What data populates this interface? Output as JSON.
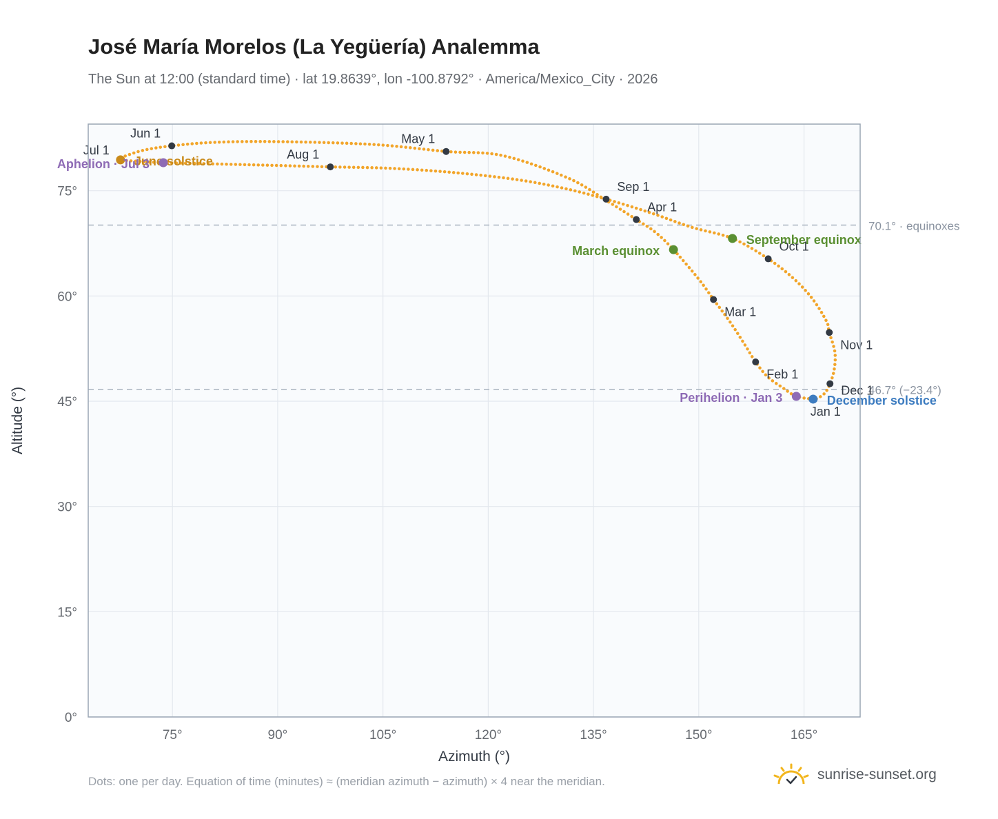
{
  "title": "José María Morelos (La Yegüería) Analemma",
  "subtitle": "The Sun at 12:00 (standard time) · lat 19.8639°, lon -100.8792° · America/Mexico_City · 2026",
  "footnote": "Dots: one per day. Equation of time (minutes) ≈ (meridian azimuth − azimuth) × 4 near the meridian.",
  "brand": {
    "text": "sunrise-sunset.org",
    "icon": "sun-logo-icon"
  },
  "chart_data": {
    "type": "scatter",
    "xlabel": "Azimuth (°)",
    "ylabel": "Altitude (°)",
    "xlim": [
      63,
      173
    ],
    "ylim": [
      0,
      84.5
    ],
    "xticks": [
      75,
      90,
      105,
      120,
      135,
      150,
      165
    ],
    "yticks": [
      0,
      15,
      30,
      45,
      60,
      75
    ],
    "tick_suffix": "°",
    "grid": true,
    "colors": {
      "path": "#f2a52a",
      "month": "#333a44",
      "equinox": "#5a8f32",
      "solstice_june": "#c98a1a",
      "solstice_dec": "#3d7cc0",
      "apsis": "#8e6bb5",
      "refline": "#aab4c0"
    },
    "path": [
      {
        "x": 166.3,
        "y": 45.3,
        "d": "Jan 1"
      },
      {
        "x": 163.9,
        "y": 45.7
      },
      {
        "x": 162.0,
        "y": 46.9
      },
      {
        "x": 159.8,
        "y": 48.5
      },
      {
        "x": 158.1,
        "y": 50.6,
        "d": "Feb 1"
      },
      {
        "x": 156.6,
        "y": 53.0
      },
      {
        "x": 154.8,
        "y": 55.8
      },
      {
        "x": 153.3,
        "y": 57.9
      },
      {
        "x": 152.1,
        "y": 59.5,
        "d": "Mar 1"
      },
      {
        "x": 150.0,
        "y": 62.4
      },
      {
        "x": 146.4,
        "y": 66.6
      },
      {
        "x": 143.8,
        "y": 69.1
      },
      {
        "x": 141.1,
        "y": 70.9,
        "d": "Apr 1"
      },
      {
        "x": 137.0,
        "y": 73.5
      },
      {
        "x": 131.4,
        "y": 76.8
      },
      {
        "x": 122.1,
        "y": 80.0
      },
      {
        "x": 114.0,
        "y": 80.6,
        "d": "May 1"
      },
      {
        "x": 103.5,
        "y": 81.6
      },
      {
        "x": 90.0,
        "y": 82.0
      },
      {
        "x": 81.0,
        "y": 81.9
      },
      {
        "x": 74.9,
        "y": 81.4,
        "d": "Jun 1"
      },
      {
        "x": 71.0,
        "y": 80.8
      },
      {
        "x": 68.4,
        "y": 80.0
      },
      {
        "x": 67.9,
        "y": 79.7
      },
      {
        "x": 67.6,
        "y": 79.4,
        "d": "Jul 1"
      },
      {
        "x": 70.0,
        "y": 79.2
      },
      {
        "x": 73.7,
        "y": 79.0
      },
      {
        "x": 82.0,
        "y": 78.8
      },
      {
        "x": 90.0,
        "y": 78.6
      },
      {
        "x": 97.5,
        "y": 78.4,
        "d": "Aug 1"
      },
      {
        "x": 106.0,
        "y": 78.2
      },
      {
        "x": 115.0,
        "y": 77.6
      },
      {
        "x": 124.0,
        "y": 76.6
      },
      {
        "x": 131.0,
        "y": 75.3
      },
      {
        "x": 136.8,
        "y": 73.8,
        "d": "Sep 1"
      },
      {
        "x": 143.0,
        "y": 71.9
      },
      {
        "x": 149.0,
        "y": 69.8
      },
      {
        "x": 154.8,
        "y": 68.2
      },
      {
        "x": 159.9,
        "y": 65.3,
        "d": "Oct 1"
      },
      {
        "x": 163.5,
        "y": 62.5
      },
      {
        "x": 166.2,
        "y": 59.6
      },
      {
        "x": 168.2,
        "y": 56.4
      },
      {
        "x": 168.6,
        "y": 54.8,
        "d": "Nov 1"
      },
      {
        "x": 169.4,
        "y": 52.0
      },
      {
        "x": 169.3,
        "y": 49.5
      },
      {
        "x": 168.7,
        "y": 47.5,
        "d": "Dec 1"
      },
      {
        "x": 168.0,
        "y": 46.2
      },
      {
        "x": 166.9,
        "y": 45.4
      },
      {
        "x": 166.3,
        "y": 45.3
      }
    ],
    "month_labels": [
      {
        "label": "Jan 1",
        "x": 166.3,
        "y": 45.3,
        "anchor": "start",
        "dx": -4,
        "dy": 24
      },
      {
        "label": "Feb 1",
        "x": 158.1,
        "y": 50.6,
        "anchor": "start",
        "dx": 16,
        "dy": 24
      },
      {
        "label": "Mar 1",
        "x": 152.1,
        "y": 59.5,
        "anchor": "start",
        "dx": 16,
        "dy": 24
      },
      {
        "label": "Apr 1",
        "x": 141.1,
        "y": 70.9,
        "anchor": "start",
        "dx": 16,
        "dy": -12
      },
      {
        "label": "May 1",
        "x": 114.0,
        "y": 80.6,
        "anchor": "end",
        "dx": -16,
        "dy": -12
      },
      {
        "label": "Jun 1",
        "x": 74.9,
        "y": 81.4,
        "anchor": "end",
        "dx": -16,
        "dy": -12
      },
      {
        "label": "Jul 1",
        "x": 67.6,
        "y": 79.4,
        "anchor": "end",
        "dx": -16,
        "dy": -8
      },
      {
        "label": "Aug 1",
        "x": 97.5,
        "y": 78.4,
        "anchor": "end",
        "dx": -16,
        "dy": -12
      },
      {
        "label": "Sep 1",
        "x": 136.8,
        "y": 73.8,
        "anchor": "start",
        "dx": 16,
        "dy": -12
      },
      {
        "label": "Oct 1",
        "x": 159.9,
        "y": 65.3,
        "anchor": "start",
        "dx": 16,
        "dy": -12
      },
      {
        "label": "Nov 1",
        "x": 168.6,
        "y": 54.8,
        "anchor": "start",
        "dx": 16,
        "dy": 24
      },
      {
        "label": "Dec 1",
        "x": 168.7,
        "y": 47.5,
        "anchor": "start",
        "dx": 16,
        "dy": 16
      }
    ],
    "events": [
      {
        "label": "March equinox",
        "x": 146.4,
        "y": 66.6,
        "kind": "equinox",
        "anchor": "end",
        "dx": -20,
        "dy": 8
      },
      {
        "label": "September equinox",
        "x": 154.8,
        "y": 68.2,
        "kind": "equinox",
        "anchor": "start",
        "dx": 20,
        "dy": 8
      },
      {
        "label": "June solstice",
        "x": 67.6,
        "y": 79.4,
        "kind": "solstice_june",
        "anchor": "start",
        "dx": 20,
        "dy": 8
      },
      {
        "label": "December solstice",
        "x": 166.3,
        "y": 45.3,
        "kind": "solstice_dec",
        "anchor": "start",
        "dx": 20,
        "dy": 8
      },
      {
        "label": "Aphelion · Jul 3",
        "x": 73.7,
        "y": 79.0,
        "kind": "apsis",
        "anchor": "end",
        "dx": -20,
        "dy": 8
      },
      {
        "label": "Perihelion · Jan 3",
        "x": 163.9,
        "y": 45.7,
        "kind": "apsis",
        "anchor": "end",
        "dx": -20,
        "dy": 8
      }
    ],
    "reference_lines": [
      {
        "y": 70.1,
        "label": "70.1° · equinoxes"
      },
      {
        "y": 46.7,
        "label": "46.7° (−23.4°)"
      }
    ]
  }
}
